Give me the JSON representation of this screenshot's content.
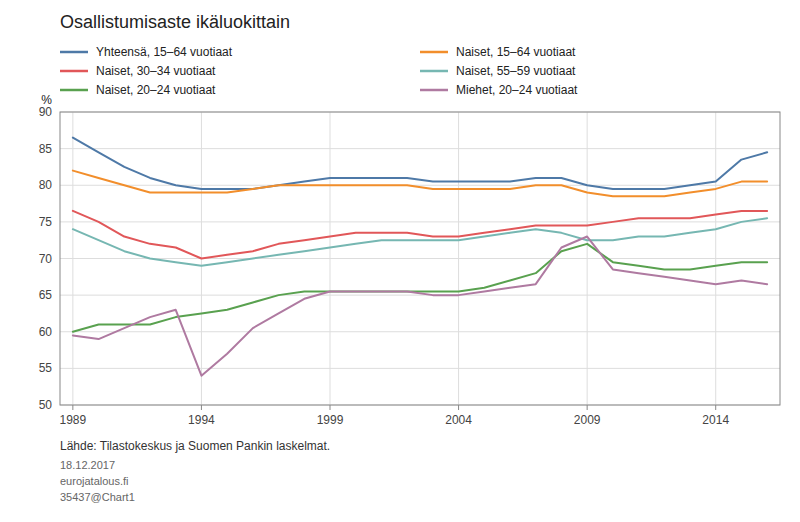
{
  "chart_data": {
    "type": "line",
    "title": "Osallistumisaste ikäluokittain",
    "y_label": "%",
    "annotations": [
      "Lähde: Tilastokeskus ja Suomen Pankin laskelmat.",
      "18.12.2017",
      "eurojatalous.fi",
      "35437@Chart1"
    ],
    "x": [
      1989,
      1990,
      1991,
      1992,
      1993,
      1994,
      1995,
      1996,
      1997,
      1998,
      1999,
      2000,
      2001,
      2002,
      2003,
      2004,
      2005,
      2006,
      2007,
      2008,
      2009,
      2010,
      2011,
      2012,
      2013,
      2014,
      2015,
      2016
    ],
    "xlim": [
      1988.5,
      2016.5
    ],
    "xticks": [
      1989,
      1994,
      1999,
      2004,
      2009,
      2014
    ],
    "ylim": [
      50,
      90
    ],
    "yticks": [
      50,
      55,
      60,
      65,
      70,
      75,
      80,
      85,
      90
    ],
    "grid": true,
    "legend": "top",
    "series": [
      {
        "name": "Yhteensä, 15–64 vuotiaat",
        "values": [
          86.5,
          84.5,
          82.5,
          81,
          80,
          79.5,
          79.5,
          79.5,
          80,
          80.5,
          81,
          81,
          81,
          81,
          80.5,
          80.5,
          80.5,
          80.5,
          81,
          81,
          80,
          79.5,
          79.5,
          79.5,
          80,
          80.5,
          83.5,
          84.5
        ]
      },
      {
        "name": "Naiset, 15–64 vuotiaat",
        "values": [
          82,
          81,
          80,
          79,
          79,
          79,
          79,
          79.5,
          80,
          80,
          80,
          80,
          80,
          80,
          79.5,
          79.5,
          79.5,
          79.5,
          80,
          80,
          79,
          78.5,
          78.5,
          78.5,
          79,
          79.5,
          80.5,
          80.5
        ]
      },
      {
        "name": "Naiset, 30–34 vuotiaat",
        "values": [
          76.5,
          75,
          73,
          72,
          71.5,
          70,
          70.5,
          71,
          72,
          72.5,
          73,
          73.5,
          73.5,
          73.5,
          73,
          73,
          73.5,
          74,
          74.5,
          74.5,
          74.5,
          75,
          75.5,
          75.5,
          75.5,
          76,
          76.5,
          76.5
        ]
      },
      {
        "name": "Naiset, 55–59 vuotiaat",
        "values": [
          74,
          72.5,
          71,
          70,
          69.5,
          69,
          69.5,
          70,
          70.5,
          71,
          71.5,
          72,
          72.5,
          72.5,
          72.5,
          72.5,
          73,
          73.5,
          74,
          73.5,
          72.5,
          72.5,
          73,
          73,
          73.5,
          74,
          75,
          75.5
        ]
      },
      {
        "name": "Naiset, 20–24 vuotiaat",
        "values": [
          60,
          61,
          61,
          61,
          62,
          62.5,
          63,
          64,
          65,
          65.5,
          65.5,
          65.5,
          65.5,
          65.5,
          65.5,
          65.5,
          66,
          67,
          68,
          71,
          72,
          69.5,
          69,
          68.5,
          68.5,
          69,
          69.5,
          69.5
        ]
      },
      {
        "name": "Miehet, 20–24 vuotiaat",
        "values": [
          59.5,
          59,
          60.5,
          62,
          63,
          54,
          57,
          60.5,
          62.5,
          64.5,
          65.5,
          65.5,
          65.5,
          65.5,
          65,
          65,
          65.5,
          66,
          66.5,
          71.5,
          73,
          68.5,
          68,
          67.5,
          67,
          66.5,
          67,
          66.5
        ]
      }
    ]
  }
}
